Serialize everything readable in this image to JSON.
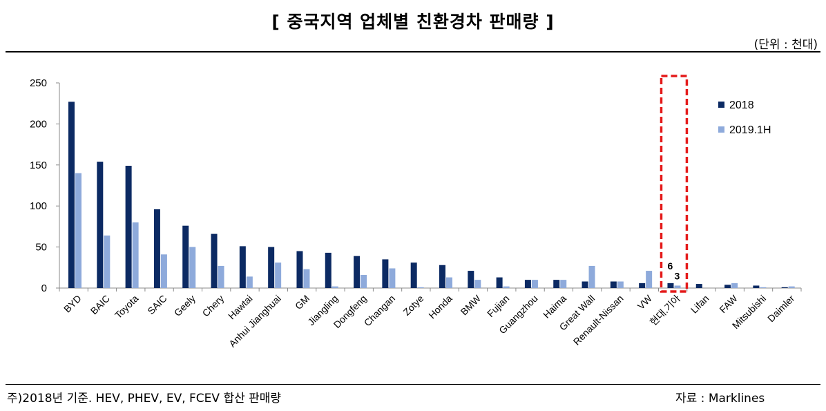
{
  "header": {
    "title": "[ 중국지역 업체별 친환경차 판매량 ]",
    "unit": "(단위 : 천대)"
  },
  "footer": {
    "note": "주)2018년 기준. HEV, PHEV, EV, FCEV 합산 판매량",
    "source": "자료 : Marklines"
  },
  "colors": {
    "series_2018": "#0c2a63",
    "series_2019": "#8eaadb",
    "highlight": "#e41a1a"
  },
  "chart_data": {
    "type": "bar",
    "title": "[ 중국지역 업체별 친환경차 판매량 ]",
    "ylim": [
      0,
      250
    ],
    "yticks": [
      0,
      50,
      100,
      150,
      200,
      250
    ],
    "grid": false,
    "legend": "right",
    "categories": [
      "BYD",
      "BAIC",
      "Toyota",
      "SAIC",
      "Geely",
      "Chery",
      "Hawtai",
      "Anhui Jianghuai",
      "GM",
      "Jiangling",
      "Dongfeng",
      "Changan",
      "Zotye",
      "Honda",
      "BMW",
      "Fujian",
      "Guangzhou",
      "Haima",
      "Great Wall",
      "Renault-Nissan",
      "VW",
      "현대.기아",
      "Lifan",
      "FAW",
      "Mitsubishi",
      "Daimler"
    ],
    "series": [
      {
        "name": "2018",
        "values": [
          227,
          154,
          149,
          96,
          76,
          66,
          51,
          50,
          45,
          43,
          39,
          35,
          31,
          28,
          21,
          13,
          10,
          10,
          8,
          8,
          6,
          6,
          5,
          4,
          3,
          1
        ]
      },
      {
        "name": "2019.1H",
        "values": [
          140,
          64,
          80,
          41,
          50,
          27,
          14,
          31,
          23,
          2,
          16,
          24,
          1,
          13,
          10,
          2,
          10,
          10,
          27,
          8,
          21,
          3,
          0,
          6,
          1,
          2
        ]
      }
    ],
    "annotations": [
      {
        "category": "현대.기아",
        "labels": [
          "6",
          "3"
        ]
      }
    ]
  }
}
